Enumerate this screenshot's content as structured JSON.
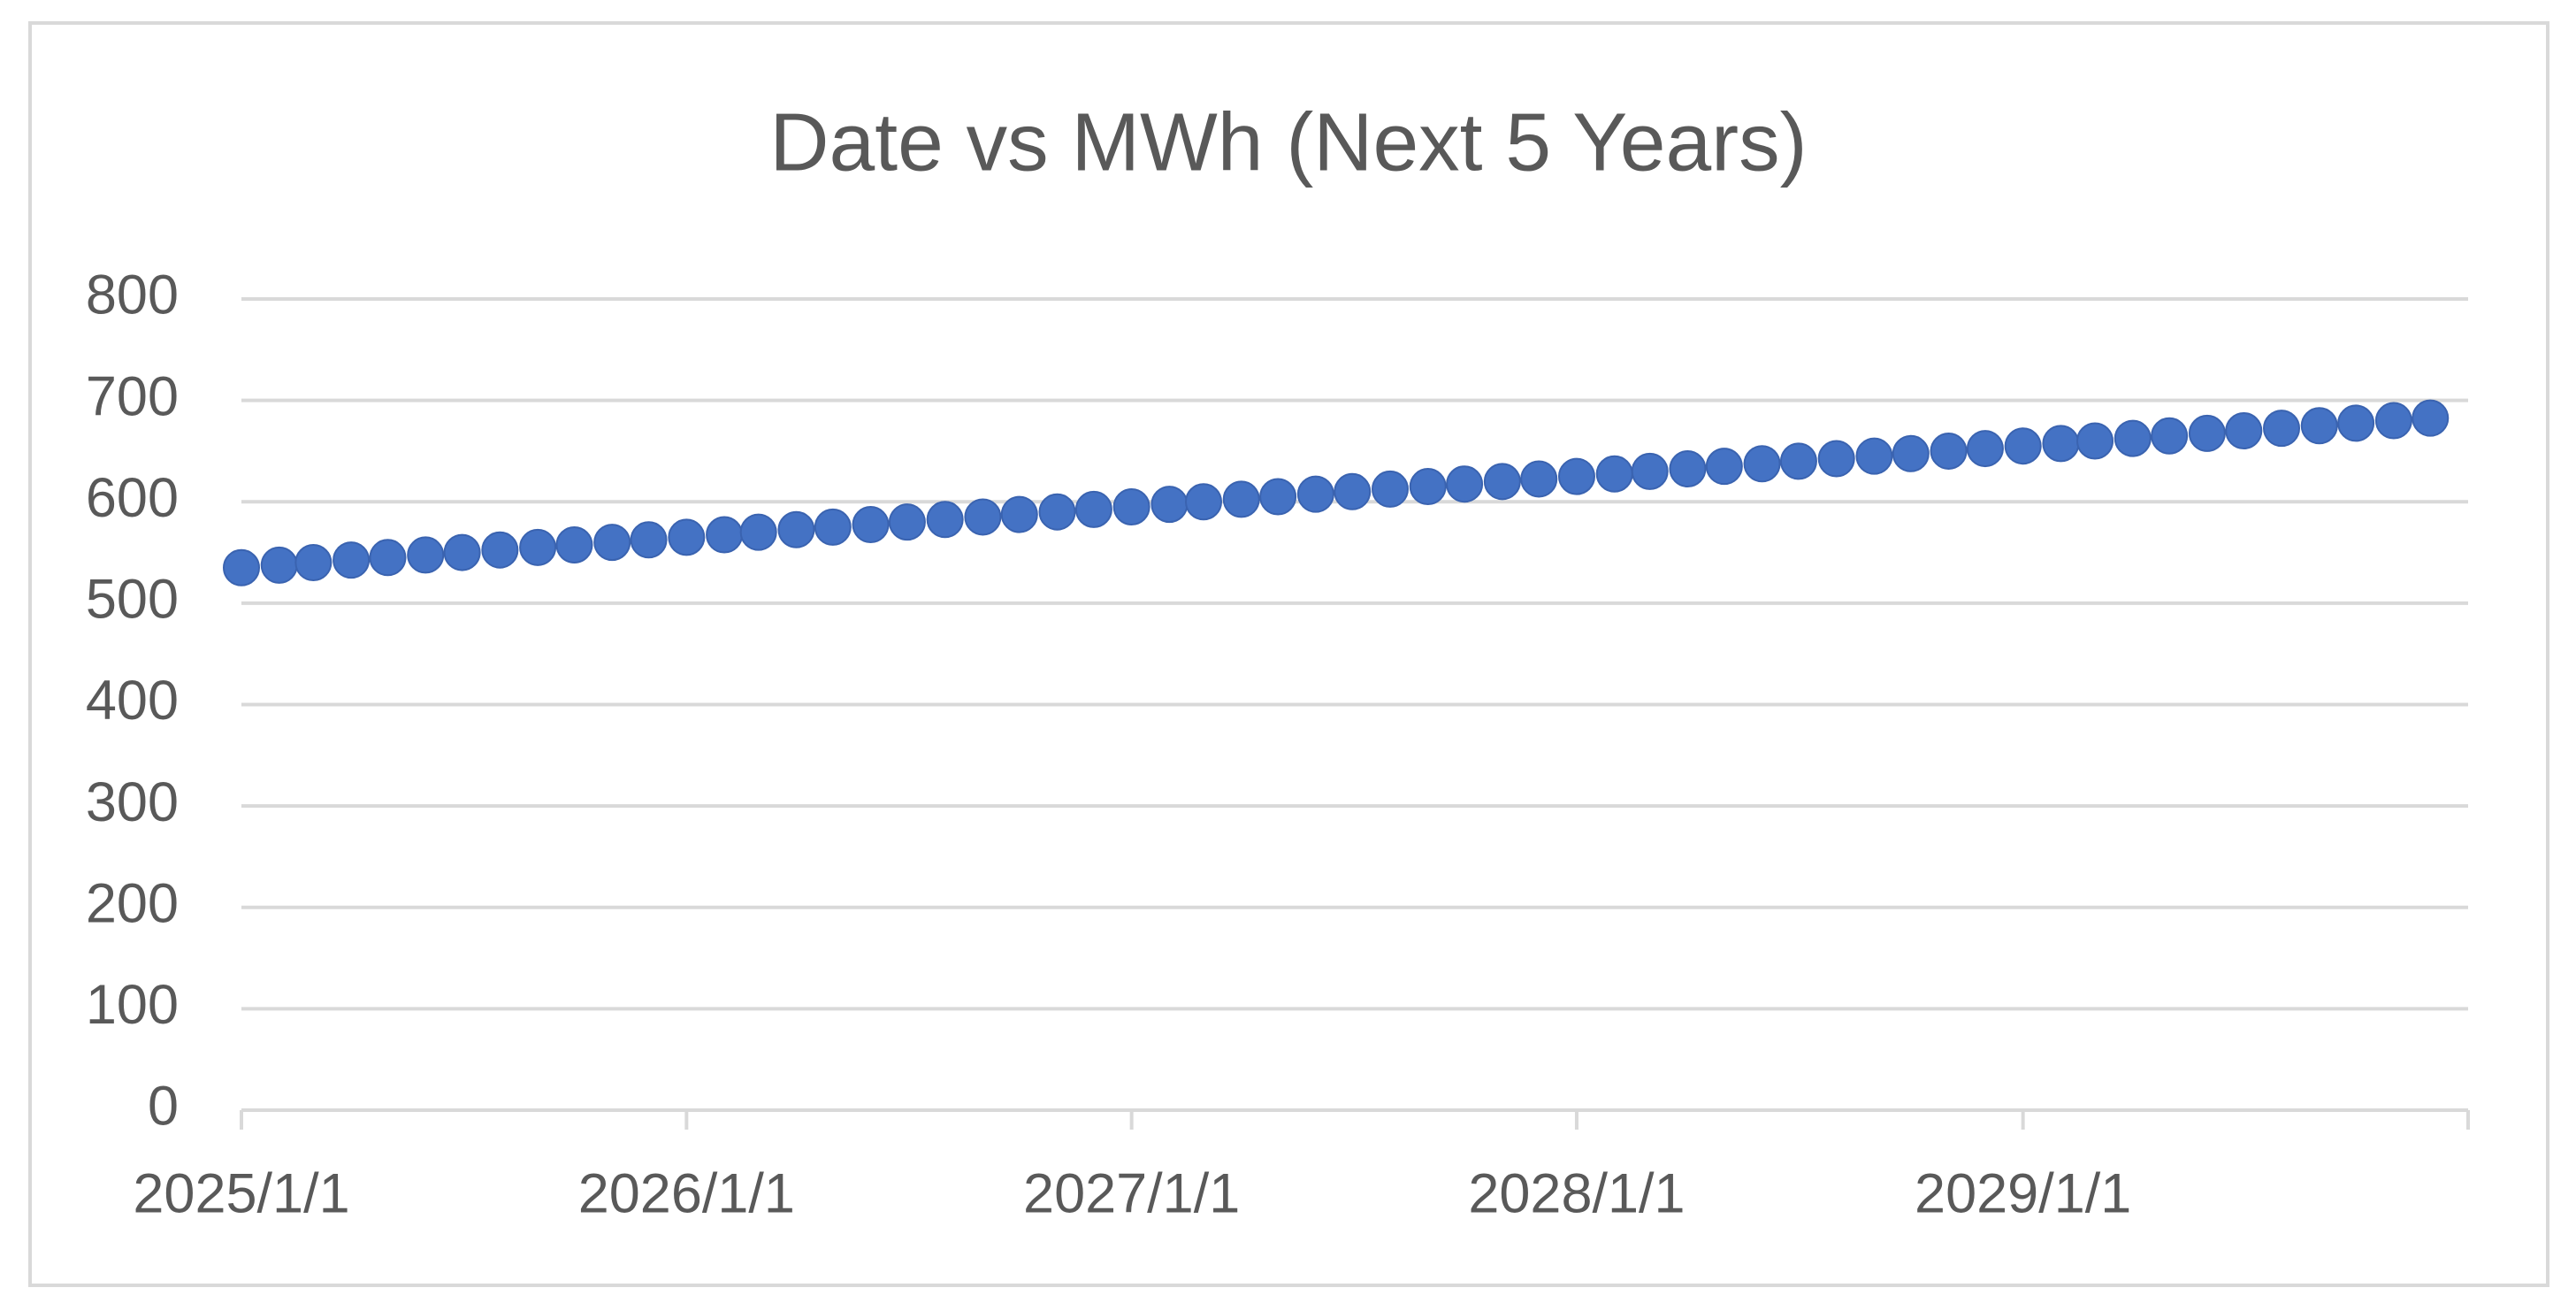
{
  "chart_data": {
    "type": "scatter",
    "title": "Date vs MWh (Next 5 Years)",
    "x": [
      "2025/1/1",
      "2025/2/1",
      "2025/3/1",
      "2025/4/1",
      "2025/5/1",
      "2025/6/1",
      "2025/7/1",
      "2025/8/1",
      "2025/9/1",
      "2025/10/1",
      "2025/11/1",
      "2025/12/1",
      "2026/1/1",
      "2026/2/1",
      "2026/3/1",
      "2026/4/1",
      "2026/5/1",
      "2026/6/1",
      "2026/7/1",
      "2026/8/1",
      "2026/9/1",
      "2026/10/1",
      "2026/11/1",
      "2026/12/1",
      "2027/1/1",
      "2027/2/1",
      "2027/3/1",
      "2027/4/1",
      "2027/5/1",
      "2027/6/1",
      "2027/7/1",
      "2027/8/1",
      "2027/9/1",
      "2027/10/1",
      "2027/11/1",
      "2027/12/1",
      "2028/1/1",
      "2028/2/1",
      "2028/3/1",
      "2028/4/1",
      "2028/5/1",
      "2028/6/1",
      "2028/7/1",
      "2028/8/1",
      "2028/9/1",
      "2028/10/1",
      "2028/11/1",
      "2028/12/1",
      "2029/1/1",
      "2029/2/1",
      "2029/3/1",
      "2029/4/1",
      "2029/5/1",
      "2029/6/1",
      "2029/7/1",
      "2029/8/1",
      "2029/9/1",
      "2029/10/1",
      "2029/11/1",
      "2029/12/1"
    ],
    "values": [
      535,
      537.5,
      540,
      542.5,
      545,
      547.5,
      550,
      552.5,
      555,
      557.5,
      560,
      562.5,
      565,
      567.5,
      570,
      572.5,
      575,
      577.5,
      580,
      582.5,
      585,
      587.5,
      590,
      592.5,
      595,
      597.5,
      600,
      602.5,
      605,
      607.5,
      610,
      612.5,
      615,
      617.5,
      620,
      622.5,
      625,
      627.5,
      630,
      632.5,
      635,
      637.5,
      640,
      642.5,
      645,
      647.5,
      650,
      652.5,
      655,
      657.5,
      660,
      662.5,
      665,
      667.5,
      670,
      672.5,
      675,
      677.5,
      680,
      682.5
    ],
    "color": "#4472c4",
    "xlim": [
      "2025/1/1",
      "2030/1/1"
    ],
    "xticks": [
      "2025/1/1",
      "2026/1/1",
      "2027/1/1",
      "2028/1/1",
      "2029/1/1"
    ],
    "ylim": [
      0,
      800
    ],
    "yticks": [
      0,
      100,
      200,
      300,
      400,
      500,
      600,
      700,
      800
    ],
    "grid": true
  }
}
